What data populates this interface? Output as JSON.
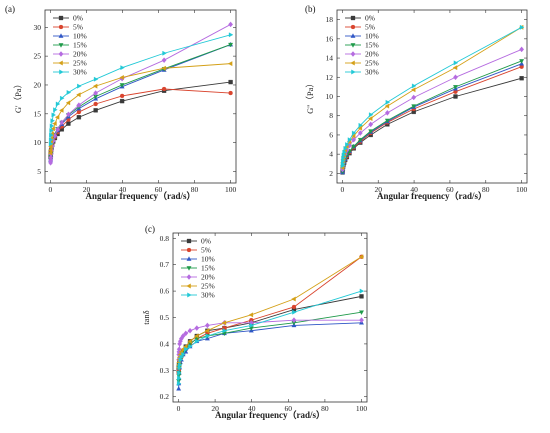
{
  "colors": {
    "0%": "#3a3a3a",
    "5%": "#d9442e",
    "10%": "#2f56c6",
    "15%": "#1f9a4a",
    "20%": "#b56be0",
    "25%": "#d4a017",
    "30%": "#22c9d6"
  },
  "markers": {
    "0%": "square",
    "5%": "circle",
    "10%": "triangle-up",
    "15%": "triangle-down",
    "20%": "diamond",
    "25%": "triangle-left",
    "30%": "triangle-right"
  },
  "chart_data": [
    {
      "type": "line",
      "panel_label": "(a)",
      "xlabel": "Angular frequency（rad/s）",
      "ylabel": "G'（Pa）",
      "xlim": [
        -3,
        103
      ],
      "ylim": [
        3,
        33
      ],
      "xticks": [
        0,
        20,
        40,
        60,
        80,
        100
      ],
      "yticks": [
        5,
        10,
        15,
        20,
        25,
        30
      ],
      "legend_position": "top-left",
      "x": [
        0.1,
        0.16,
        0.25,
        0.4,
        0.63,
        1,
        1.58,
        2.51,
        3.98,
        6.31,
        10,
        15.8,
        25.1,
        39.8,
        63.1,
        100
      ],
      "series": [
        {
          "name": "0%",
          "values": [
            7.5,
            7.9,
            8.3,
            8.7,
            9.1,
            9.6,
            10.2,
            10.8,
            11.5,
            12.3,
            13.3,
            14.4,
            15.6,
            17.2,
            19.0,
            20.5
          ]
        },
        {
          "name": "5%",
          "values": [
            7.6,
            8.0,
            8.4,
            8.8,
            9.3,
            9.8,
            10.4,
            11.0,
            11.8,
            12.8,
            14.0,
            15.3,
            16.7,
            18.1,
            19.3,
            18.6
          ]
        },
        {
          "name": "10%",
          "values": [
            7.0,
            7.4,
            7.9,
            8.4,
            9.0,
            9.6,
            10.4,
            11.2,
            12.1,
            13.2,
            14.5,
            15.9,
            17.6,
            19.7,
            22.6,
            27.0
          ]
        },
        {
          "name": "15%",
          "values": [
            7.2,
            7.6,
            8.1,
            8.6,
            9.2,
            9.8,
            10.6,
            11.4,
            12.4,
            13.5,
            14.8,
            16.2,
            18.0,
            20.0,
            22.8,
            27.0
          ]
        },
        {
          "name": "20%",
          "values": [
            6.5,
            6.9,
            7.4,
            8.0,
            8.7,
            9.4,
            10.3,
            11.2,
            12.3,
            13.5,
            14.9,
            16.5,
            18.6,
            21.1,
            24.3,
            30.5
          ]
        },
        {
          "name": "25%",
          "values": [
            8.2,
            8.7,
            9.3,
            10.0,
            10.7,
            11.5,
            12.4,
            13.3,
            14.4,
            15.6,
            16.9,
            18.3,
            19.8,
            21.3,
            22.9,
            23.7
          ]
        },
        {
          "name": "30%",
          "values": [
            9.8,
            10.5,
            11.3,
            12.1,
            12.9,
            13.8,
            14.8,
            15.7,
            16.7,
            17.7,
            18.7,
            19.8,
            21.0,
            23.0,
            25.5,
            28.7
          ]
        }
      ]
    },
    {
      "type": "line",
      "panel_label": "(b)",
      "xlabel": "Angular frequency（rad/s）",
      "ylabel": "G''（Pa）",
      "xlim": [
        -3,
        103
      ],
      "ylim": [
        1,
        19
      ],
      "xticks": [
        0,
        20,
        40,
        60,
        80,
        100
      ],
      "yticks": [
        2,
        4,
        6,
        8,
        10,
        12,
        14,
        16,
        18
      ],
      "legend_position": "top-left",
      "x": [
        0.1,
        0.16,
        0.25,
        0.4,
        0.63,
        1,
        1.58,
        2.51,
        3.98,
        6.31,
        10,
        15.8,
        25.1,
        39.8,
        63.1,
        100
      ],
      "series": [
        {
          "name": "0%",
          "values": [
            2.1,
            2.3,
            2.5,
            2.7,
            2.9,
            3.1,
            3.4,
            3.7,
            4.1,
            4.6,
            5.2,
            6.0,
            7.1,
            8.4,
            10.0,
            11.9
          ]
        },
        {
          "name": "5%",
          "values": [
            2.2,
            2.4,
            2.6,
            2.8,
            3.0,
            3.2,
            3.5,
            3.8,
            4.2,
            4.7,
            5.3,
            6.2,
            7.3,
            8.7,
            10.5,
            13.1
          ]
        },
        {
          "name": "10%",
          "values": [
            2.1,
            2.3,
            2.5,
            2.7,
            3.0,
            3.2,
            3.5,
            3.9,
            4.3,
            4.8,
            5.4,
            6.3,
            7.4,
            8.9,
            10.8,
            13.4
          ]
        },
        {
          "name": "15%",
          "values": [
            2.2,
            2.4,
            2.6,
            2.8,
            3.0,
            3.3,
            3.6,
            3.9,
            4.3,
            4.8,
            5.5,
            6.4,
            7.5,
            9.0,
            11.0,
            13.7
          ]
        },
        {
          "name": "20%",
          "values": [
            2.4,
            2.6,
            2.8,
            3.1,
            3.4,
            3.7,
            4.0,
            4.4,
            4.9,
            5.5,
            6.2,
            7.1,
            8.3,
            9.9,
            12.0,
            14.9
          ]
        },
        {
          "name": "25%",
          "values": [
            2.6,
            2.8,
            3.1,
            3.4,
            3.7,
            4.0,
            4.4,
            4.8,
            5.3,
            5.9,
            6.7,
            7.7,
            9.0,
            10.7,
            13.0,
            17.2
          ]
        },
        {
          "name": "30%",
          "values": [
            2.8,
            3.0,
            3.3,
            3.6,
            3.9,
            4.2,
            4.6,
            5.0,
            5.5,
            6.2,
            7.0,
            8.1,
            9.4,
            11.1,
            13.5,
            17.2
          ]
        }
      ]
    },
    {
      "type": "line",
      "panel_label": "(c)",
      "xlabel": "Angular frequency（rad/s）",
      "ylabel": "tanδ",
      "xlim": [
        -3,
        103
      ],
      "ylim": [
        0.18,
        0.82
      ],
      "xticks": [
        0,
        20,
        40,
        60,
        80,
        100
      ],
      "yticks": [
        0.2,
        0.3,
        0.4,
        0.5,
        0.6,
        0.7,
        0.8
      ],
      "legend_position": "top-left",
      "x": [
        0.1,
        0.16,
        0.25,
        0.4,
        0.63,
        1,
        1.58,
        2.51,
        3.98,
        6.31,
        10,
        15.8,
        25.1,
        39.8,
        63.1,
        100
      ],
      "series": [
        {
          "name": "0%",
          "values": [
            0.3,
            0.31,
            0.32,
            0.33,
            0.34,
            0.35,
            0.36,
            0.37,
            0.39,
            0.41,
            0.43,
            0.45,
            0.46,
            0.48,
            0.53,
            0.58
          ]
        },
        {
          "name": "5%",
          "values": [
            0.29,
            0.3,
            0.31,
            0.32,
            0.33,
            0.34,
            0.35,
            0.36,
            0.38,
            0.4,
            0.42,
            0.44,
            0.46,
            0.49,
            0.54,
            0.73
          ]
        },
        {
          "name": "10%",
          "values": [
            0.23,
            0.25,
            0.27,
            0.29,
            0.31,
            0.33,
            0.34,
            0.36,
            0.37,
            0.39,
            0.41,
            0.42,
            0.44,
            0.45,
            0.47,
            0.48
          ]
        },
        {
          "name": "15%",
          "values": [
            0.26,
            0.28,
            0.29,
            0.31,
            0.32,
            0.34,
            0.35,
            0.37,
            0.38,
            0.4,
            0.42,
            0.43,
            0.44,
            0.46,
            0.48,
            0.52
          ]
        },
        {
          "name": "20%",
          "values": [
            0.34,
            0.36,
            0.37,
            0.38,
            0.4,
            0.41,
            0.42,
            0.43,
            0.44,
            0.45,
            0.46,
            0.47,
            0.48,
            0.48,
            0.49,
            0.49
          ]
        },
        {
          "name": "25%",
          "values": [
            0.31,
            0.32,
            0.33,
            0.34,
            0.35,
            0.36,
            0.37,
            0.38,
            0.39,
            0.41,
            0.43,
            0.45,
            0.48,
            0.51,
            0.57,
            0.73
          ]
        },
        {
          "name": "30%",
          "values": [
            0.25,
            0.27,
            0.29,
            0.31,
            0.32,
            0.34,
            0.35,
            0.36,
            0.38,
            0.39,
            0.41,
            0.43,
            0.45,
            0.47,
            0.52,
            0.6
          ]
        }
      ]
    }
  ]
}
